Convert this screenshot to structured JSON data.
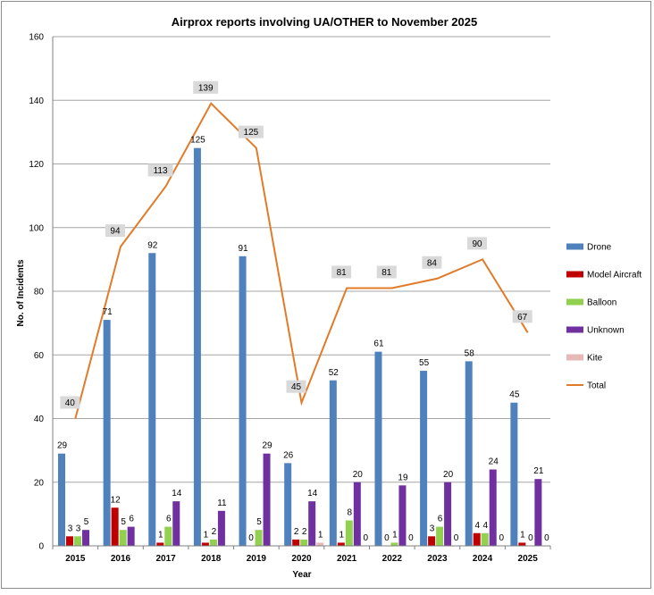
{
  "chart_data": {
    "type": "bar",
    "title": "Airprox reports involving UA/OTHER to November 2025",
    "xlabel": "Year",
    "ylabel": "No. of Incidents",
    "ylim": [
      0,
      160
    ],
    "yticks": [
      0,
      20,
      40,
      60,
      80,
      100,
      120,
      140,
      160
    ],
    "grid": true,
    "legend_position": "right",
    "categories": [
      "2015",
      "2016",
      "2017",
      "2018",
      "2019",
      "2020",
      "2021",
      "2022",
      "2023",
      "2024",
      "2025"
    ],
    "series": [
      {
        "name": "Drone",
        "kind": "bar",
        "color": "#4f81bd",
        "values": [
          29,
          71,
          92,
          125,
          91,
          26,
          52,
          61,
          55,
          58,
          45
        ]
      },
      {
        "name": "Model Aircraft",
        "kind": "bar",
        "color": "#c00000",
        "values": [
          3,
          12,
          1,
          1,
          0,
          2,
          1,
          0,
          3,
          4,
          1
        ]
      },
      {
        "name": "Balloon",
        "kind": "bar",
        "color": "#92d050",
        "values": [
          3,
          5,
          6,
          2,
          5,
          2,
          8,
          1,
          6,
          4,
          0
        ]
      },
      {
        "name": "Unknown",
        "kind": "bar",
        "color": "#7030a0",
        "values": [
          5,
          6,
          14,
          11,
          29,
          14,
          20,
          19,
          20,
          24,
          21
        ]
      },
      {
        "name": "Kite",
        "kind": "bar",
        "color": "#e6b9b8",
        "values": [
          null,
          null,
          null,
          null,
          null,
          1,
          0,
          0,
          0,
          0,
          0
        ]
      },
      {
        "name": "Total",
        "kind": "line",
        "color": "#e07b2a",
        "values": [
          40,
          94,
          113,
          139,
          125,
          45,
          81,
          81,
          84,
          90,
          67
        ]
      }
    ]
  }
}
